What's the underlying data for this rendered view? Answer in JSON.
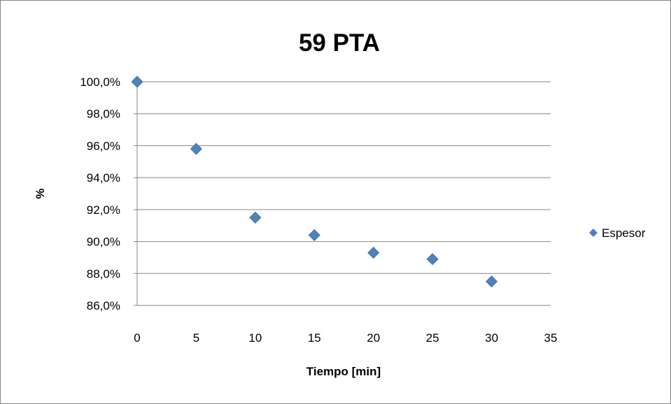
{
  "chart_data": {
    "type": "scatter",
    "title": "59 PTA",
    "xlabel": "Tiempo [min]",
    "ylabel": "%",
    "xlim": [
      0,
      35
    ],
    "ylim": [
      86.0,
      100.0
    ],
    "x_ticks": [
      0,
      5,
      10,
      15,
      20,
      25,
      30,
      35
    ],
    "y_ticks": [
      86.0,
      88.0,
      90.0,
      92.0,
      94.0,
      96.0,
      98.0,
      100.0
    ],
    "y_tick_labels": [
      "86,0%",
      "88,0%",
      "90,0%",
      "92,0%",
      "94,0%",
      "96,0%",
      "98,0%",
      "100,0%"
    ],
    "grid": "horizontal",
    "legend_position": "right",
    "series": [
      {
        "name": "Espesor",
        "color": "#4F81BD",
        "marker": "diamond",
        "x": [
          0,
          5,
          10,
          15,
          20,
          25,
          30
        ],
        "y": [
          100.0,
          95.8,
          91.5,
          90.4,
          89.3,
          88.9,
          87.5
        ]
      }
    ]
  }
}
